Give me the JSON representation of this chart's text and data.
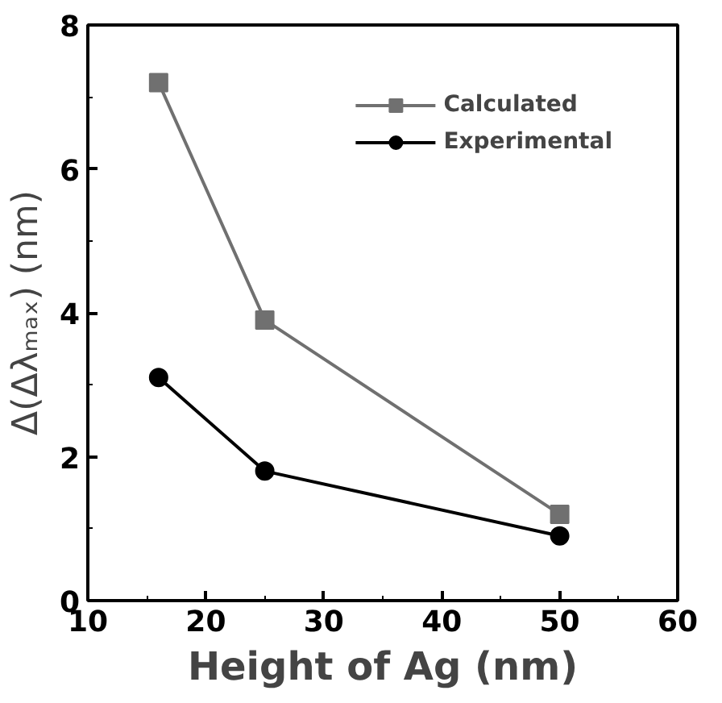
{
  "chart_data": {
    "type": "line",
    "xlabel": "Height of Ag (nm)",
    "ylabel": "Δ(Δλₘₐₓ) (nm)",
    "x": [
      16,
      25,
      50
    ],
    "series": [
      {
        "name": "Calculated",
        "color": "#707070",
        "values": [
          7.2,
          3.9,
          1.2
        ],
        "marker": "square"
      },
      {
        "name": "Experimental",
        "color": "#000000",
        "values": [
          3.1,
          1.8,
          0.9
        ],
        "marker": "circle"
      }
    ],
    "xlim": [
      10,
      60
    ],
    "xticks": [
      10,
      20,
      30,
      40,
      50,
      60
    ],
    "ylim": [
      0,
      8
    ],
    "yticks": [
      0,
      2,
      4,
      6,
      8
    ],
    "grid": false,
    "legend": "top right",
    "line_style": "solid"
  }
}
